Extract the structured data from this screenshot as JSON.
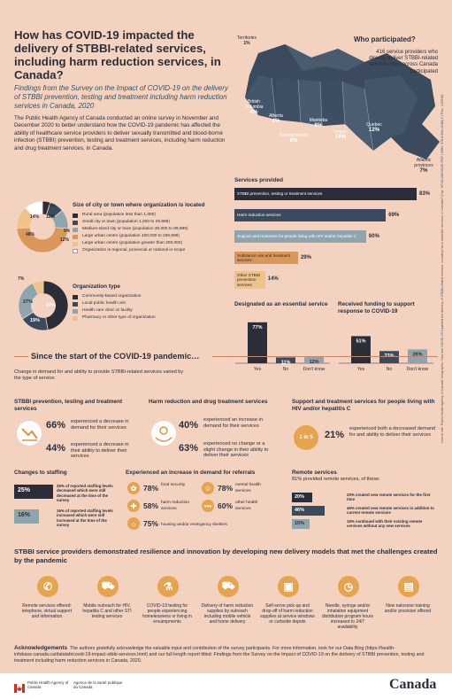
{
  "header": {
    "title": "How has COVID-19 impacted the delivery of STBBI-related services, including harm reduction services, in Canada?",
    "subtitle": "Findings from the Survey on the Impact of COVID-19 on the delivery of STBBI prevention, testing and treatment including harm reduction services in Canada, 2020",
    "intro": "The Public Health Agency of Canada conducted an online survey in November and December 2020 to better understand how the COVID-19 pandemic has affected the ability of healthcare service providers to deliver sexually transmitted and blood-borne infection (STBBI) prevention, testing and treatment services, including harm reduction and drug treatment services, in Canada."
  },
  "map": {
    "who_title": "Who participated?",
    "who_desc": "416 service providers who directly deliver STBBI-related services from across Canada participated",
    "regions": [
      {
        "name": "Territories",
        "pct": "1%"
      },
      {
        "name": "British Columbia",
        "pct": "6%"
      },
      {
        "name": "Alberta",
        "pct": "4%"
      },
      {
        "name": "Saskatchewan",
        "pct": "8%"
      },
      {
        "name": "Manitoba",
        "pct": "8%"
      },
      {
        "name": "Ontario",
        "pct": "54%"
      },
      {
        "name": "Quebec",
        "pct": "12%"
      },
      {
        "name": "Atlantic provinces",
        "pct": "7%"
      }
    ]
  },
  "location": {
    "title": "Size of city or town where organization is located",
    "legend": [
      "Rural area (population less than 1,000)",
      "Small city or town (population 1,000 to 29,999)",
      "Medium-sized city or town (population 30,000 to 99,999)",
      "Large urban centre (population 100,000 to 199,999)",
      "Large urban centre (population greater than 200,000)",
      "Organization is regional, provincial or national in scope"
    ],
    "colors": [
      "#2b2e38",
      "#3b4a5c",
      "#8ea5ad",
      "#d9975a",
      "#efc28a",
      "#ffffff"
    ],
    "values": [
      5,
      9,
      12,
      48,
      14,
      12
    ],
    "labels": [
      "5%",
      "9%",
      "12%",
      "48%",
      "14%",
      "12%"
    ]
  },
  "orgtype": {
    "title": "Organization type",
    "legend": [
      "Community-based organization",
      "Local public health unit",
      "Health care clinic or facility",
      "Pharmacy or other type of organization"
    ],
    "colors": [
      "#2b2e38",
      "#3b4a5c",
      "#8ea5ad",
      "#efc28a"
    ],
    "values": [
      47,
      19,
      27,
      7
    ],
    "labels": [
      "47%",
      "19%",
      "27%",
      "7%"
    ]
  },
  "services": {
    "title": "Services provided",
    "items": [
      {
        "label": "STBBI prevention, testing or treatment services",
        "pct": "83%",
        "value": 83,
        "color": "#2b2e38"
      },
      {
        "label": "Harm reduction services",
        "pct": "69%",
        "value": 69,
        "color": "#3b4a5c"
      },
      {
        "label": "Support and treatment for people living with HIV and/or hepatitis C",
        "pct": "60%",
        "value": 60,
        "color": "#8ea5ad"
      },
      {
        "label": "Substance use and treatment services",
        "pct": "29%",
        "value": 29,
        "color": "#d9975a"
      },
      {
        "label": "Other STBBI prevention services",
        "pct": "14%",
        "value": 14,
        "color": "#efc28a"
      }
    ]
  },
  "designated": {
    "title": "Designated as an essential service",
    "categories": [
      "Yes",
      "No",
      "Don't know"
    ],
    "values": [
      77,
      11,
      12
    ],
    "labels": [
      "77%",
      "11%",
      "12%"
    ]
  },
  "funding": {
    "title": "Received funding to support response to COVID-19",
    "categories": [
      "Yes",
      "No",
      "Don't know"
    ],
    "values": [
      51,
      23,
      26
    ],
    "labels": [
      "51%",
      "23%",
      "26%"
    ]
  },
  "pandemic": {
    "title": "Since the start of the COVID-19 pandemic…",
    "desc": "Change in demand for and ability to provide STBBI-related services varied by the type of service:",
    "stbbi": {
      "title": "STBBI prevention, testing and treatment services",
      "p1": "66%",
      "t1": "experienced a decrease in demand for their services",
      "p2": "44%",
      "t2": "experienced a decrease in their ability to deliver their services"
    },
    "harm": {
      "title": "Harm reduction and drug treatment services",
      "p1": "40%",
      "t1": "experienced an increase in demand for their services",
      "p2": "63%",
      "t2": "experienced no change or a slight change in their ability to deliver their services"
    },
    "support": {
      "title": "Support and treatment services for people living with HIV and/or hepatitis C",
      "badge": "1 in 5",
      "p1": "21%",
      "t1": "experienced both a decreased demand for and ability to deliver their services"
    }
  },
  "staffing": {
    "title": "Changes to staffing",
    "p1": "25%",
    "t1": "25% of reported staffing levels decreased which were still decreased at the time of the survey",
    "p2": "16%",
    "t2": "16% of reported staffing levels increased which were still increased at the time of the survey"
  },
  "referrals": {
    "title": "Experienced an increase in demand for referrals",
    "items": [
      {
        "pct": "78%",
        "label": "food security"
      },
      {
        "pct": "78%",
        "label": "mental health services"
      },
      {
        "pct": "58%",
        "label": "harm reduction services"
      },
      {
        "pct": "60%",
        "label": "other health services"
      },
      {
        "pct": "75%",
        "label": "housing and/or emergency shelters"
      }
    ]
  },
  "remote": {
    "title": "Remote services",
    "desc": "81% provided remote services, of these:",
    "items": [
      {
        "pct": "20%",
        "value": 20,
        "label": "20% created new remote services for the first time"
      },
      {
        "pct": "46%",
        "value": 46,
        "label": "46% created new remote services in addition to current remote services"
      },
      {
        "pct": "15%",
        "value": 15,
        "label": "15% continued with their existing remote services without any new services"
      }
    ]
  },
  "resilience": {
    "title": "STBBI service providers demonstrated resilience and innovation by developing new delivery models that met the challenges created by the pandemic",
    "items": [
      "Remote services offered: telephone, virtual support and information",
      "Mobile outreach for HIV, hepatitis C and other STI testing services",
      "COVID-19 testing for people experiencing homelessness or living in encampments",
      "Delivery of harm reduction supplies by outreach including mobile vehicle and home delivery",
      "Self-serve pick-up and drop-off of harm reduction supplies at service windows or curbside depots",
      "Needle, syringe and/or inhalation equipment distribution program hours increased to 24/7 availability",
      "New naloxone training and/or provision offered"
    ],
    "icons": [
      "phone-icon",
      "van-icon",
      "test-tube-icon",
      "truck-icon",
      "window-icon",
      "clock-icon",
      "briefcase-icon"
    ]
  },
  "ack": {
    "title": "Acknowledgements",
    "text": "The authors gratefully acknowledge the valuable input and contribution of the survey participants. For more information, look for our Data Blog (https://health-infobase.canada.ca/datalab/covid-19-impact-stbbi-services.html) and our full length report titled: Findings from the Survey on the Impact of COVID-19 on the delivery of STBBI prevention, testing and treatment including harm reduction services in Canada, 2020."
  },
  "side_note": "How to cite: Public Health Agency of Canada. Infographic: How has COVID-19 impacted the delivery of STBBI-related services, including harm reduction services, in Canada? (Cat.: HP40-298/2022E-PDF | ISBN: 978-0-660-41886-2 | Pub.: 210918)",
  "footer": {
    "agency_en": "Public Health Agency of Canada",
    "agency_fr": "Agence de la santé publique du Canada",
    "wordmark": "Canada"
  }
}
